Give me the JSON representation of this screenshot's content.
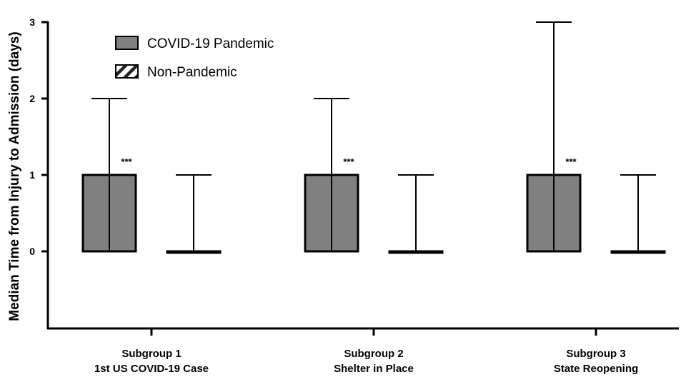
{
  "chart_data": {
    "type": "bar",
    "title": "",
    "ylabel": "Median Time from Injury to Admission (days)",
    "xlabel": "",
    "ylim": [
      -1,
      3
    ],
    "yticks": [
      0,
      1,
      2,
      3
    ],
    "grid": false,
    "legend_position": "top-left",
    "categories": [
      [
        "Subgroup 1",
        "1st US COVID-19 Case"
      ],
      [
        "Subgroup 2",
        "Shelter in Place"
      ],
      [
        "Subgroup 3",
        "State Reopening"
      ]
    ],
    "series": [
      {
        "name": "COVID-19 Pandemic",
        "pattern": "solid",
        "color": "#808080",
        "values": [
          1,
          1,
          1
        ],
        "error_low": [
          0,
          0,
          0
        ],
        "error_high": [
          2,
          2,
          3
        ],
        "annotations": [
          "***",
          "***",
          "***"
        ]
      },
      {
        "name": "Non-Pandemic",
        "pattern": "hatched",
        "color": "#ffffff",
        "values": [
          0,
          0,
          0
        ],
        "error_low": [
          0,
          0,
          0
        ],
        "error_high": [
          1,
          1,
          1
        ],
        "annotations": [
          "",
          "",
          ""
        ]
      }
    ]
  }
}
